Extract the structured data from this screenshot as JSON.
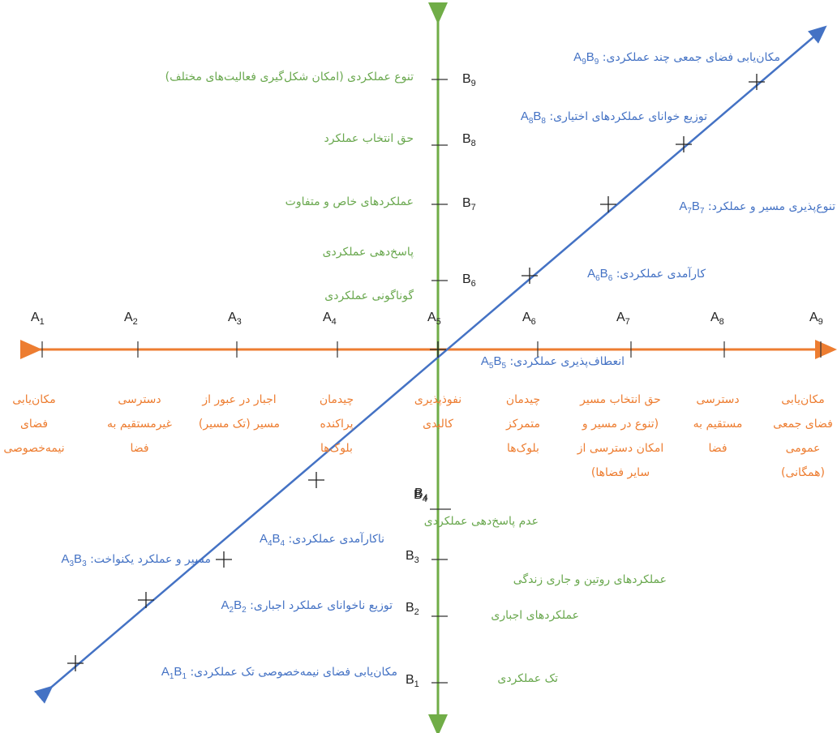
{
  "colors": {
    "horizontal_axis": "#ed7d31",
    "vertical_axis": "#70ad47",
    "diagonal": "#4472c4",
    "green_text": "#6aa84f",
    "orange_text": "#ed7d31",
    "blue_text": "#4472c4"
  },
  "a_axis": {
    "ticks": [
      "A1",
      "A2",
      "A3",
      "A4",
      "A5",
      "A6",
      "A7",
      "A8",
      "A9"
    ],
    "descriptions": [
      "مکان‌یابی فضای نیمه‌خصوصی",
      "دسترسی غیرمستقیم به فضا",
      "اجبار در عبور از مسیر (تک مسیر)",
      "چیدمان پراکنده بلوک‌ها",
      "نفوذپذیری کالبدی",
      "چیدمان متمرکز بلوک‌ها",
      "حق انتخاب مسیر (تنوع در مسیر و امکان دسترسی از سایر فضاها)",
      "دسترسی مستقیم به فضا",
      "مکان‌یابی فضای جمعی عمومی (همگانی)"
    ]
  },
  "b_axis": {
    "ticks": [
      "B1",
      "B2",
      "B3",
      "B4",
      "B5",
      "B6",
      "B7",
      "B8",
      "B9"
    ],
    "descriptions_upper": {
      "b9": "تنوع عملکردی (امکان شکل‌گیری فعالیت‌های مختلف)",
      "b8": "حق انتخاب عملکرد",
      "b7": "عملکردهای خاص و متفاوت",
      "b6a": "پاسخ‌دهی عملکردی",
      "b6b": "گوناگونی عملکردی"
    },
    "descriptions_lower": {
      "b4": "عدم پاسخ‌دهی عملکردی",
      "b3": "عملکردهای روتین و جاری زندگی",
      "b2": "عملکردهای اجباری",
      "b1": "تک عملکردی"
    }
  },
  "diagonal_pairs": [
    {
      "pair": "A1B1",
      "text": "مکان‌یابی فضای نیمه‌خصوصی تک عملکردی:"
    },
    {
      "pair": "A2B2",
      "text": "توزیع ناخوانای عملکرد اجباری:"
    },
    {
      "pair": "A3B3",
      "text": "مسیر و عملکرد یکنواخت:"
    },
    {
      "pair": "A4B4",
      "text": "ناکارآمدی عملکردی:"
    },
    {
      "pair": "A5B5",
      "text": "انعطاف‌پذیری عملکردی:"
    },
    {
      "pair": "A6B6",
      "text": "کارآمدی عملکردی:"
    },
    {
      "pair": "A7B7",
      "text": "تنوع‌پذیری مسیر و عملکرد:"
    },
    {
      "pair": "A8B8",
      "text": "توزیع خوانای عملکردهای اختیاری:"
    },
    {
      "pair": "A9B9",
      "text": "مکان‌یابی فضای جمعی چند عملکردی:"
    }
  ]
}
